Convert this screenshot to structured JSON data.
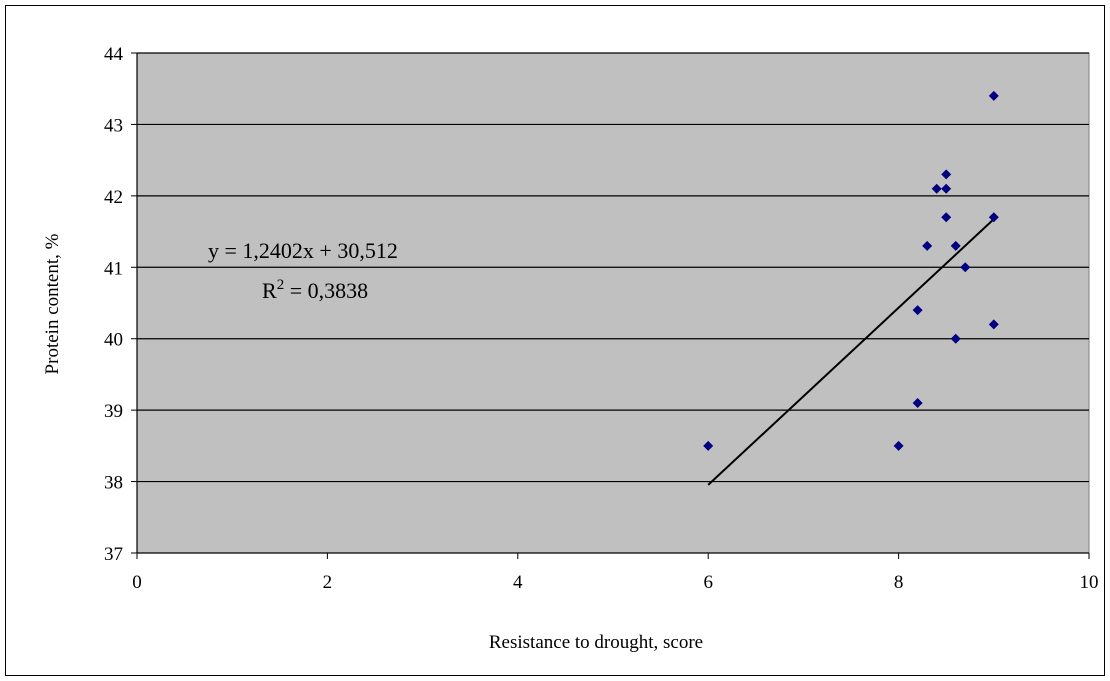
{
  "chart_data": {
    "type": "scatter",
    "xlabel": "Resistance to drought, score",
    "ylabel": "Protein content, %",
    "xlim": [
      0,
      10
    ],
    "ylim": [
      37,
      44
    ],
    "x_ticks": [
      0,
      2,
      4,
      6,
      8,
      10
    ],
    "y_ticks": [
      37,
      38,
      39,
      40,
      41,
      42,
      43,
      44
    ],
    "grid": "horizontal",
    "plot_background": "#c0c0c0",
    "marker_color": "#000080",
    "series": [
      {
        "points": [
          {
            "x": 6.0,
            "y": 38.5
          },
          {
            "x": 8.0,
            "y": 38.5
          },
          {
            "x": 8.2,
            "y": 39.1
          },
          {
            "x": 8.2,
            "y": 40.4
          },
          {
            "x": 8.3,
            "y": 41.3
          },
          {
            "x": 8.4,
            "y": 42.1
          },
          {
            "x": 8.5,
            "y": 42.3
          },
          {
            "x": 8.5,
            "y": 42.1
          },
          {
            "x": 8.5,
            "y": 41.7
          },
          {
            "x": 8.6,
            "y": 41.3
          },
          {
            "x": 8.6,
            "y": 40.0
          },
          {
            "x": 8.7,
            "y": 41.0
          },
          {
            "x": 9.0,
            "y": 43.4
          },
          {
            "x": 9.0,
            "y": 41.7
          },
          {
            "x": 9.0,
            "y": 40.2
          }
        ]
      }
    ],
    "trendline": {
      "slope": 1.2402,
      "intercept": 30.512,
      "x_range": [
        6,
        9
      ],
      "equation_text": "y = 1,2402x + 30,512",
      "r2_prefix": "R",
      "r2_superscript": "2",
      "r2_value_text": " = 0,3838"
    }
  }
}
